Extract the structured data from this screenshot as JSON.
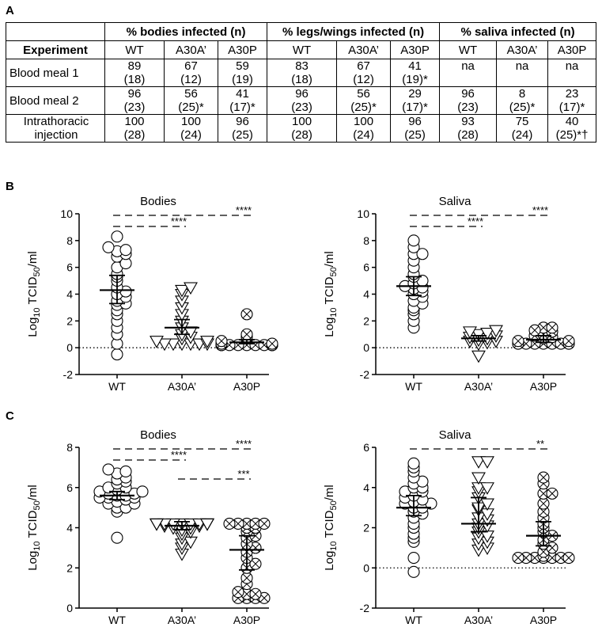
{
  "panels": {
    "A": "A",
    "B": "B",
    "C": "C"
  },
  "table": {
    "group_headers": [
      "% bodies infected (n)",
      "% legs/wings infected (n)",
      "% saliva infected (n)"
    ],
    "row_header": "Experiment",
    "sub_headers": [
      "WT",
      "A30A’",
      "A30P",
      "WT",
      "A30A’",
      "A30P",
      "WT",
      "A30A’",
      "A30P"
    ],
    "rows": [
      {
        "label": [
          "Blood meal 1"
        ],
        "cells": [
          [
            "89",
            "(18)"
          ],
          [
            "67",
            "(12)"
          ],
          [
            "59",
            "(19)"
          ],
          [
            "83",
            "(18)"
          ],
          [
            "67",
            "(12)"
          ],
          [
            "41",
            "(19)*"
          ],
          [
            "na",
            ""
          ],
          [
            "na",
            ""
          ],
          [
            "na",
            ""
          ]
        ]
      },
      {
        "label": [
          "Blood meal 2"
        ],
        "cells": [
          [
            "96",
            "(23)"
          ],
          [
            "56",
            "(25)*"
          ],
          [
            "41",
            "(17)*"
          ],
          [
            "96",
            "(23)"
          ],
          [
            "56",
            "(25)*"
          ],
          [
            "29",
            "(17)*"
          ],
          [
            "96",
            "(23)"
          ],
          [
            "8",
            "(25)*"
          ],
          [
            "23",
            "(17)*"
          ]
        ]
      },
      {
        "label": [
          "Intrathoracic",
          "injection"
        ],
        "cells": [
          [
            "100",
            "(28)"
          ],
          [
            "100",
            "(24)"
          ],
          [
            "96",
            "(25)"
          ],
          [
            "100",
            "(28)"
          ],
          [
            "100",
            "(24)"
          ],
          [
            "96",
            "(25)"
          ],
          [
            "93",
            "(28)"
          ],
          [
            "75",
            "(24)"
          ],
          [
            "40",
            "(25)*†"
          ]
        ]
      }
    ]
  },
  "chart_data": [
    {
      "id": "B-bodies",
      "type": "scatter",
      "title": "Bodies",
      "ylabel": "Log10 TCID50/ml",
      "ylim": [
        -2,
        10
      ],
      "yticks": [
        -2,
        0,
        2,
        4,
        6,
        8,
        10
      ],
      "categories": [
        "WT",
        "A30A’",
        "A30P"
      ],
      "series": [
        {
          "category": "WT",
          "marker": "circle",
          "mean": 4.3,
          "ci": [
            3.3,
            5.4
          ],
          "values": [
            -0.5,
            0.3,
            1.0,
            1.5,
            2.0,
            2.5,
            2.8,
            3.2,
            3.3,
            3.5,
            3.8,
            4.0,
            4.2,
            4.5,
            5.0,
            5.3,
            5.5,
            6.0,
            6.3,
            6.8,
            7.0,
            7.2,
            7.3,
            7.5,
            8.3
          ]
        },
        {
          "category": "A30A’",
          "marker": "triangle-down",
          "mean": 1.5,
          "ci": [
            1.0,
            2.1
          ],
          "values": [
            0.3,
            0.3,
            0.3,
            0.3,
            0.3,
            0.3,
            0.5,
            0.5,
            0.7,
            0.8,
            1.0,
            1.2,
            1.5,
            2.0,
            2.5,
            3.0,
            3.5,
            4.0,
            4.3,
            4.5
          ]
        },
        {
          "category": "A30P",
          "marker": "circle-x",
          "mean": 0.4,
          "ci": [
            0.3,
            0.6
          ],
          "values": [
            0.2,
            0.2,
            0.2,
            0.2,
            0.2,
            0.2,
            0.2,
            0.2,
            0.2,
            0.2,
            0.2,
            0.2,
            0.3,
            0.3,
            0.5,
            0.8,
            1.0,
            2.5
          ]
        }
      ],
      "brackets": [
        {
          "from": "WT",
          "to": "A30A’",
          "label": "****"
        },
        {
          "from": "WT",
          "to": "A30P",
          "label": "****"
        }
      ]
    },
    {
      "id": "B-saliva",
      "type": "scatter",
      "title": "Saliva",
      "ylabel": "Log10 TCID50/ml",
      "ylim": [
        -2,
        10
      ],
      "yticks": [
        -2,
        0,
        2,
        4,
        6,
        8,
        10
      ],
      "categories": [
        "WT",
        "A30A’",
        "A30P"
      ],
      "series": [
        {
          "category": "WT",
          "marker": "circle",
          "mean": 4.6,
          "ci": [
            3.9,
            5.3
          ],
          "values": [
            1.5,
            2.0,
            2.5,
            2.8,
            3.0,
            3.3,
            3.5,
            3.8,
            4.0,
            4.2,
            4.4,
            4.5,
            4.6,
            4.8,
            5.0,
            5.3,
            5.5,
            6.0,
            6.5,
            7.0,
            7.0,
            7.5,
            8.0
          ]
        },
        {
          "category": "A30A’",
          "marker": "triangle-down",
          "mean": 0.7,
          "ci": [
            0.5,
            0.9
          ],
          "values": [
            -0.6,
            0.3,
            0.4,
            0.5,
            0.5,
            0.6,
            0.7,
            0.8,
            0.9,
            1.0,
            1.1,
            1.2,
            1.3
          ]
        },
        {
          "category": "A30P",
          "marker": "circle-x",
          "mean": 0.6,
          "ci": [
            0.4,
            0.9
          ],
          "values": [
            0.3,
            0.3,
            0.3,
            0.3,
            0.3,
            0.3,
            0.3,
            0.3,
            0.3,
            0.5,
            0.5,
            0.7,
            0.8,
            0.9,
            1.0,
            1.2,
            1.5,
            1.5,
            1.3
          ]
        }
      ],
      "brackets": [
        {
          "from": "WT",
          "to": "A30A’",
          "label": "****"
        },
        {
          "from": "WT",
          "to": "A30P",
          "label": "****"
        }
      ]
    },
    {
      "id": "C-bodies",
      "type": "scatter",
      "title": "Bodies",
      "ylabel": "Log10 TCID50/ml",
      "ylim": [
        0,
        8
      ],
      "yticks": [
        0,
        2,
        4,
        6,
        8
      ],
      "categories": [
        "WT",
        "A30A’",
        "A30P"
      ],
      "series": [
        {
          "category": "WT",
          "marker": "circle",
          "mean": 5.6,
          "ci": [
            5.4,
            5.8
          ],
          "values": [
            3.5,
            4.8,
            5.0,
            5.0,
            5.2,
            5.2,
            5.3,
            5.4,
            5.5,
            5.5,
            5.5,
            5.6,
            5.6,
            5.7,
            5.7,
            5.8,
            5.8,
            5.9,
            6.0,
            6.0,
            6.2,
            6.3,
            6.4,
            6.5,
            6.7,
            6.8,
            6.9
          ]
        },
        {
          "category": "A30A’",
          "marker": "triangle-down",
          "mean": 4.1,
          "ci": [
            3.9,
            4.3
          ],
          "values": [
            2.7,
            3.0,
            3.2,
            3.3,
            3.5,
            3.7,
            3.8,
            3.9,
            4.0,
            4.0,
            4.1,
            4.1,
            4.2,
            4.2,
            4.2,
            4.2,
            4.2,
            4.2,
            4.2,
            4.2,
            4.2,
            4.2,
            4.2,
            4.2
          ]
        },
        {
          "category": "A30P",
          "marker": "circle-x",
          "mean": 2.9,
          "ci": [
            1.9,
            3.6
          ],
          "values": [
            0.5,
            0.5,
            0.5,
            0.5,
            0.7,
            0.7,
            0.8,
            1.2,
            1.5,
            2.0,
            2.2,
            2.5,
            2.8,
            3.0,
            3.2,
            3.5,
            3.6,
            3.8,
            4.0,
            4.0,
            4.2,
            4.2,
            4.2,
            4.2,
            4.2
          ]
        }
      ],
      "brackets": [
        {
          "from": "WT",
          "to": "A30A’",
          "label": "****"
        },
        {
          "from": "WT",
          "to": "A30P",
          "label": "****"
        },
        {
          "from": "A30A’",
          "to": "A30P",
          "label": "***"
        }
      ]
    },
    {
      "id": "C-saliva",
      "type": "scatter",
      "title": "Saliva",
      "ylabel": "Log10 TCID50/ml",
      "ylim": [
        -2,
        6
      ],
      "yticks": [
        -2,
        0,
        2,
        4,
        6
      ],
      "categories": [
        "WT",
        "A30A’",
        "A30P"
      ],
      "series": [
        {
          "category": "WT",
          "marker": "circle",
          "mean": 3.0,
          "ci": [
            2.6,
            3.6
          ],
          "values": [
            -0.2,
            0.5,
            1.3,
            1.5,
            1.7,
            2.0,
            2.2,
            2.5,
            2.7,
            2.8,
            3.0,
            3.0,
            3.2,
            3.2,
            3.3,
            3.4,
            3.5,
            3.6,
            3.8,
            3.8,
            4.0,
            4.0,
            4.2,
            4.3,
            4.5,
            4.8,
            5.0,
            5.2
          ]
        },
        {
          "category": "A30A’",
          "marker": "triangle-down",
          "mean": 2.2,
          "ci": [
            1.8,
            3.5
          ],
          "values": [
            0.9,
            1.0,
            1.2,
            1.3,
            1.5,
            1.6,
            1.8,
            2.0,
            2.1,
            2.2,
            2.4,
            2.5,
            2.7,
            2.9,
            3.0,
            3.2,
            3.5,
            3.8,
            4.0,
            4.0,
            4.5,
            5.3,
            5.3
          ]
        },
        {
          "category": "A30P",
          "marker": "circle-x",
          "mean": 1.6,
          "ci": [
            1.1,
            2.3
          ],
          "values": [
            0.5,
            0.5,
            0.5,
            0.5,
            0.5,
            0.5,
            0.5,
            0.6,
            0.8,
            1.0,
            1.2,
            1.4,
            1.6,
            1.8,
            2.0,
            2.2,
            2.5,
            2.8,
            3.2,
            3.7,
            3.7,
            4.2,
            4.5
          ]
        }
      ],
      "brackets": [
        {
          "from": "WT",
          "to": "A30P",
          "label": "**"
        }
      ]
    }
  ]
}
